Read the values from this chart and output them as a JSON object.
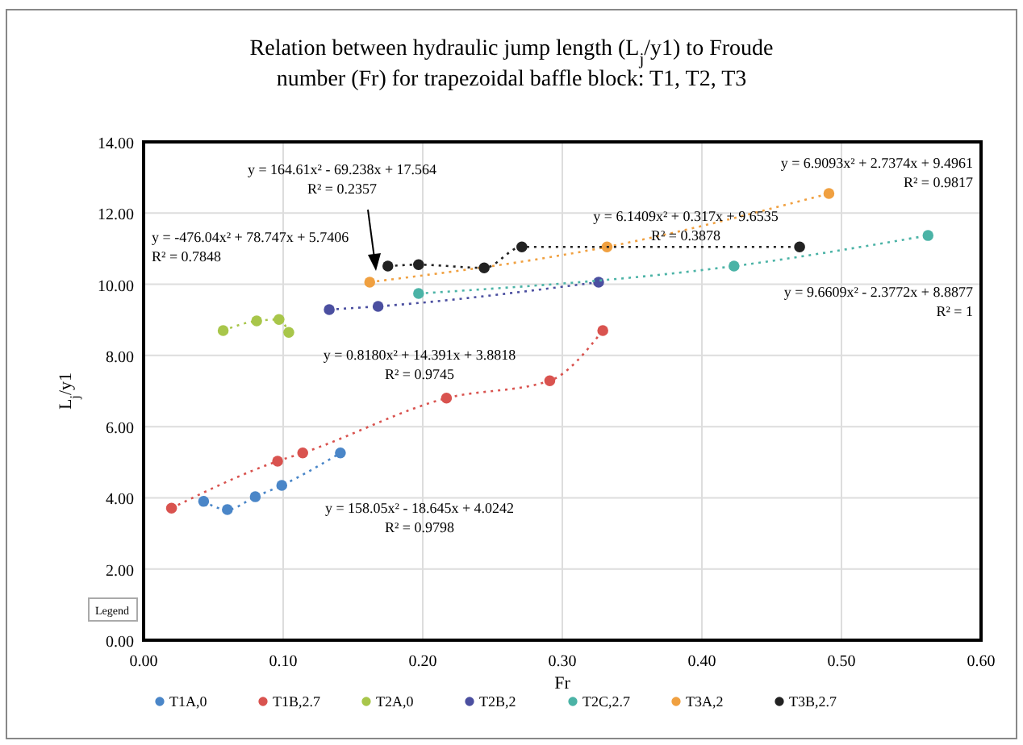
{
  "chart_data": {
    "type": "line",
    "title": "Relation between hydraulic jump length (L$_{j}$/y1) to Froude number (Fr) for trapezoidal baffle block: T1, T2, T3",
    "xlabel": "Fr",
    "ylabel": "L$_{j}$/y1",
    "xlim": [
      0,
      0.6
    ],
    "xticks": [
      {
        "value": 0,
        "label": "0.00"
      },
      {
        "value": 0.1,
        "label": "0.10"
      },
      {
        "value": 0.2,
        "label": "0.20"
      },
      {
        "value": 0.3,
        "label": "0.30"
      },
      {
        "value": 0.4,
        "label": "0.40"
      },
      {
        "value": 0.5,
        "label": "0.50"
      },
      {
        "value": 0.6,
        "label": "0.60"
      }
    ],
    "ylim": [
      0,
      14
    ],
    "yticks": [
      {
        "value": 0,
        "label": "0.00"
      },
      {
        "value": 2,
        "label": "2.00"
      },
      {
        "value": 4,
        "label": "4.00"
      },
      {
        "value": 6,
        "label": "6.00"
      },
      {
        "value": 8,
        "label": "8.00"
      },
      {
        "value": 10,
        "label": "10.00"
      },
      {
        "value": 12,
        "label": "12.00"
      },
      {
        "value": 14,
        "label": "14.00"
      }
    ],
    "grid": true,
    "legend": "bottom",
    "marker": "circle",
    "line_style": "dotted",
    "series": [
      {
        "name": "T1A,0",
        "color": "#4a86c8",
        "x": [
          0.043,
          0.06,
          0.08,
          0.099,
          0.141
        ],
        "values": [
          3.9,
          3.67,
          4.03,
          4.35,
          5.26
        ]
      },
      {
        "name": "T1B,2.7",
        "color": "#d9534f",
        "x": [
          0.02,
          0.096,
          0.114,
          0.217,
          0.291,
          0.329
        ],
        "values": [
          3.71,
          5.03,
          5.26,
          6.8,
          7.29,
          8.7
        ]
      },
      {
        "name": "T2A,0",
        "color": "#a8c64a",
        "x": [
          0.057,
          0.081,
          0.097,
          0.104
        ],
        "values": [
          8.7,
          8.97,
          9.01,
          8.65
        ]
      },
      {
        "name": "T2B,2",
        "color": "#4b4fa0",
        "x": [
          0.133,
          0.168,
          0.326
        ],
        "values": [
          9.29,
          9.38,
          10.06
        ]
      },
      {
        "name": "T2C,2.7",
        "color": "#4bb3a6",
        "x": [
          0.197,
          0.423,
          0.562
        ],
        "values": [
          9.74,
          10.51,
          11.37
        ]
      },
      {
        "name": "T3A,2",
        "color": "#f0a040",
        "x": [
          0.162,
          0.332,
          0.491
        ],
        "values": [
          10.06,
          11.05,
          12.55
        ]
      },
      {
        "name": "T3B,2.7",
        "color": "#222222",
        "x": [
          0.175,
          0.197,
          0.244,
          0.271,
          0.47
        ],
        "values": [
          10.51,
          10.55,
          10.46,
          11.05,
          11.05
        ]
      }
    ],
    "annotations": [
      "y = 164.61x² - 69.238x + 17.564\nR² = 0.2357",
      "y = -476.04x² + 78.747x + 5.7406\nR² = 0.7848",
      "y = 6.9093x² + 2.7374x + 9.4961\nR² = 0.9817",
      "y = 6.1409x² + 0.317x + 9.6535\nR² = 0.3878",
      "y = 9.6609x² - 2.3772x + 8.8877\nR² = 1",
      "y = 0.8180x² + 14.391x + 3.8818\nR² = 0.9745",
      "y = 158.05x² - 18.645x + 4.0242\nR² = 0.9798",
      "Legend"
    ]
  }
}
